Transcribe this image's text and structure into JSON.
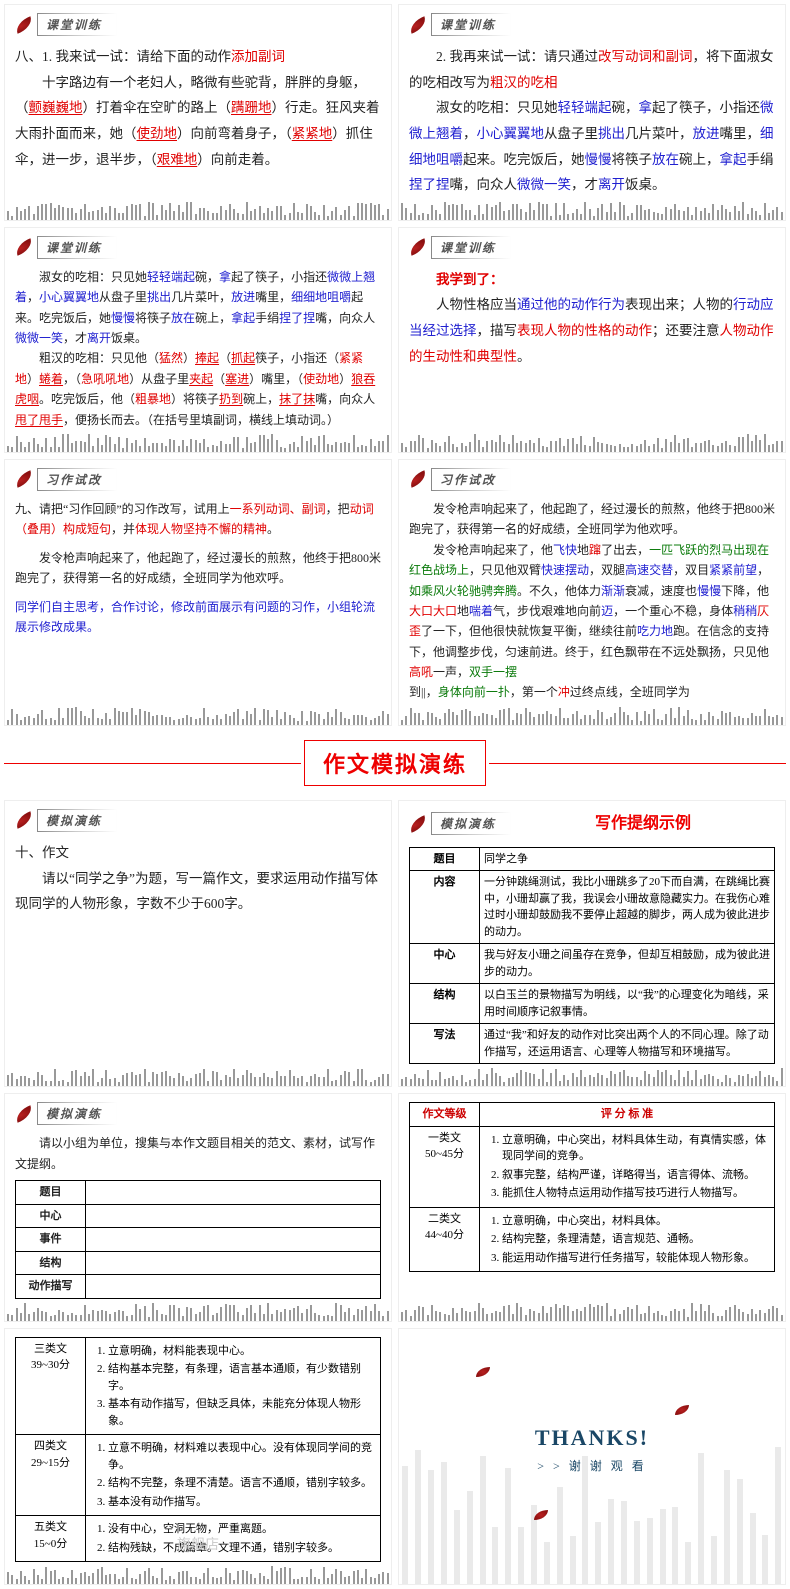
{
  "badges": {
    "ketang": "课堂训练",
    "xizuo": "习作试改",
    "moni": "模拟演练"
  },
  "p1": {
    "title": "八、1. 我来试一试：请给下面的动作",
    "title_red": "添加副词",
    "body_pre": "十字路边有一个老妇人，略微有些驼背，胖胖的身躯，（",
    "a1": "颤巍巍地",
    "b1": "）打着伞在空旷的路上（",
    "a2": "蹒跚地",
    "b2": "）行走。狂风夹着大雨扑面而来，她（",
    "a3": "使劲地",
    "b3": "）向前弯着身子，（",
    "a4": "紧紧地",
    "b4": "）抓住伞，进一步，退半步，（",
    "a5": "艰难地",
    "b5": "）向前走着。"
  },
  "p2": {
    "title_a": "2. 我再来试一试：请只通过",
    "title_b": "改写动词和副词",
    "title_c": "，将下面淑女的吃相改写为",
    "title_d": "粗汉的吃相",
    "body_pre": "淑女的吃相：只见她",
    "t1": "轻轻端起",
    "m1": "碗，",
    "t2": "拿",
    "m2": "起了筷子，小指还",
    "t3": "微微上翘着",
    "m3": "，",
    "t4": "小心翼翼地",
    "m4": "从盘子里",
    "t5": "挑出",
    "m5": "几片菜叶，",
    "t6": "放进",
    "m6": "嘴里，",
    "t7": "细细地咀嚼",
    "m7": "起来。吃完饭后，她",
    "t8": "慢慢",
    "m8": "将筷子",
    "t9": "放在",
    "m9": "碗上，",
    "t10": "拿起",
    "m10": "手绢",
    "t11": "捏了捏",
    "m11": "嘴，向众人",
    "t12": "微微一笑",
    "m12": "，才",
    "t13": "离开",
    "m13": "饭桌。"
  },
  "p3": {
    "line1_pre": "淑女的吃相：只见她",
    "l1": {
      "t1": "轻轻端起",
      "m1": "碗，",
      "t2": "拿",
      "m2": "起了筷子，小指还",
      "t3": "微微上翘着",
      "m3": "，",
      "t4": "小心翼翼地",
      "m4": "从盘子里",
      "t5": "挑出",
      "m5": "几片菜叶，",
      "t6": "放进",
      "m6": "嘴里，",
      "t7": "细细地咀嚼",
      "m7": "起来。吃完饭后，她",
      "t8": "慢慢",
      "m8": "将筷子",
      "t9": "放在",
      "m9": "碗上，",
      "t10": "拿起",
      "m10": "手绢",
      "t11": "捏了捏",
      "m11": "嘴，向众人",
      "t12": "微微一笑",
      "m12": "，才",
      "t13": "离开",
      "m13": "饭桌。"
    },
    "line2_pre": "粗汉的吃相：只见他（",
    "r1": "猛然",
    "s1": "）",
    "ru1": "捧起",
    "s1b": "（",
    "ru2": "抓起",
    "s2": "筷子，小指还（",
    "r2": "紧紧地",
    "s3": "）",
    "ru3": "蜷着",
    "s4": "，（",
    "r3": "急吼吼地",
    "s5": "）从盘子里",
    "ru4": "夹起",
    "s5b": "（",
    "ru4b": "塞进",
    "s6": "）嘴里，（",
    "r4": "使劲地",
    "s7": "）",
    "ru5": "狼吞虎咽",
    "s8": "。吃完饭后，他（",
    "r5": "粗暴地",
    "s9": "）将筷子",
    "ru6": "扔到",
    "s10": "碗上，",
    "ru7": "抹了抹",
    "s11": "嘴，向众人",
    "ru8": "甩了甩手",
    "s12": "，便扬长而去。（在括号里填副词，横线上填动词。）"
  },
  "p4": {
    "title": "我学到了：",
    "body_pre": "人物性格应当",
    "b1": "通过他的动作行为",
    "m1": "表现出来；人物的",
    "b2": "行动应当经过选择",
    "m2": "，描写",
    "b3": "表现人物的性格的动作",
    "m3": "；还要注意",
    "b4": "人物动作的生动性和典型性",
    "m4": "。"
  },
  "p5": {
    "pre": "九、请把“习作回顾”的习作改写，试用上",
    "r1": "一系列动词、副词",
    "m1": "，把",
    "r2": "动词（叠用）构成短句",
    "m2": "，并",
    "r3": "体现人物坚持不懈的精神",
    "m3": "。",
    "para2": "发令枪声响起来了，他起跑了，经过漫长的煎熬，他终于把800米跑完了，获得第一名的好成绩，全班同学为他欢呼。",
    "note": "同学们自主思考，合作讨论，修改前面展示有问题的习作，小组轮流展示修改成果。"
  },
  "p6": {
    "intro": "发令枪声响起来了，他起跑了，经过漫长的煎熬，他终于把800米跑完了，获得第一名的好成绩，全班同学为他欢呼。",
    "body": "发令枪声响起来了，他飞快地蹿了出去，一匹飞跃的烈马出现在红色战场上，只见他双臂快速摆动，双腿高速交替，双目紧紧前望，如乘风火轮驰骋奔腾。不久，他体力渐渐衰减，速度也慢慢下降，他大口大口地喘着气，步伐艰难地向前迈，一个重心不稳，身体稍稍仄歪了一下，但他很快就恢复平衡，继续往前吃力地跑。在信念的支持下，他调整步伐，匀速前进。终于，红色飘带在不远处飘扬，只见他高吼一声，双手一摆\n到¦¦，身体向前一扑，第一个冲过终点线，全班同学为"
  },
  "center": "作文模拟演练",
  "p7": {
    "title": "十、作文",
    "body": "请以“同学之争”为题，写一篇作文，要求运用动作描写体现同学的人物形象，字数不少于600字。"
  },
  "p8": {
    "title": "写作提纲示例",
    "rows": [
      {
        "k": "题目",
        "v": "同学之争"
      },
      {
        "k": "内容",
        "v": "一分钟跳绳测试，我比小珊跳多了20下而自满，在跳绳比赛中，小珊却赢了我，我误会小珊故意隐藏实力。在我伤心难过时小珊却鼓励我不要停止超越的脚步，两人成为彼此进步的动力。"
      },
      {
        "k": "中心",
        "v": "我与好友小珊之间虽存在竞争，但却互相鼓励，成为彼此进步的动力。"
      },
      {
        "k": "结构",
        "v": "以白玉兰的景物描写为明线，以“我”的心理变化为暗线，采用时间顺序记叙事情。"
      },
      {
        "k": "写法",
        "v": "通过“我”和好友的动作对比突出两个人的不同心理。除了动作描写，还运用语言、心理等人物描写和环境描写。"
      }
    ]
  },
  "p9": {
    "intro": "请以小组为单位，搜集与本作文题目相关的范文、素材，试写作文提纲。",
    "rows": [
      "题目",
      "中心",
      "事件",
      "结构",
      "动作描写"
    ]
  },
  "p10": {
    "head1": "作文等级",
    "head2": "评 分 标 准",
    "r1": {
      "grade": "一类文\n50~45分",
      "crits": [
        "立意明确，中心突出，材料具体生动，有真情实感，体现同学间的竞争。",
        "叙事完整，结构严谨，详略得当，语言得体、流畅。",
        "能抓住人物特点运用动作描写技巧进行人物描写。"
      ]
    },
    "r2": {
      "grade": "二类文\n44~40分",
      "crits": [
        "立意明确，中心突出，材料具体。",
        "结构完整，条理清楚，语言规范、通畅。",
        "能运用动作描写进行任务描写，较能体现人物形象。"
      ]
    }
  },
  "p11": {
    "r3": {
      "grade": "三类文\n39~30分",
      "crits": [
        "立意明确，材料能表现中心。",
        "结构基本完整，有条理，语言基本通顺，有少数错别字。",
        "基本有动作描写，但缺乏具体，未能充分体现人物形象。"
      ]
    },
    "r4": {
      "grade": "四类文\n29~15分",
      "crits": [
        "立意不明确，材料难以表现中心。没有体现同学间的竞争。",
        "结构不完整，条理不清楚。语言不通顺，错别字较多。",
        "基本没有动作描写。"
      ]
    },
    "r5": {
      "grade": "五类文\n15~0分",
      "crits": [
        "没有中心，空洞无物，严重离题。",
        "结构残缺，不成篇章。文理不通，错别字较多。"
      ]
    },
    "watermark": "旗舰店"
  },
  "thanks": {
    "title": "THANKS!",
    "sub": "> > 谢 谢 观 看"
  },
  "colors": {
    "red": "#e00000",
    "blue": "#2020d0",
    "green": "#0a7a0a",
    "badge_bg": "#888",
    "text": "#222",
    "barcode": "#999"
  }
}
